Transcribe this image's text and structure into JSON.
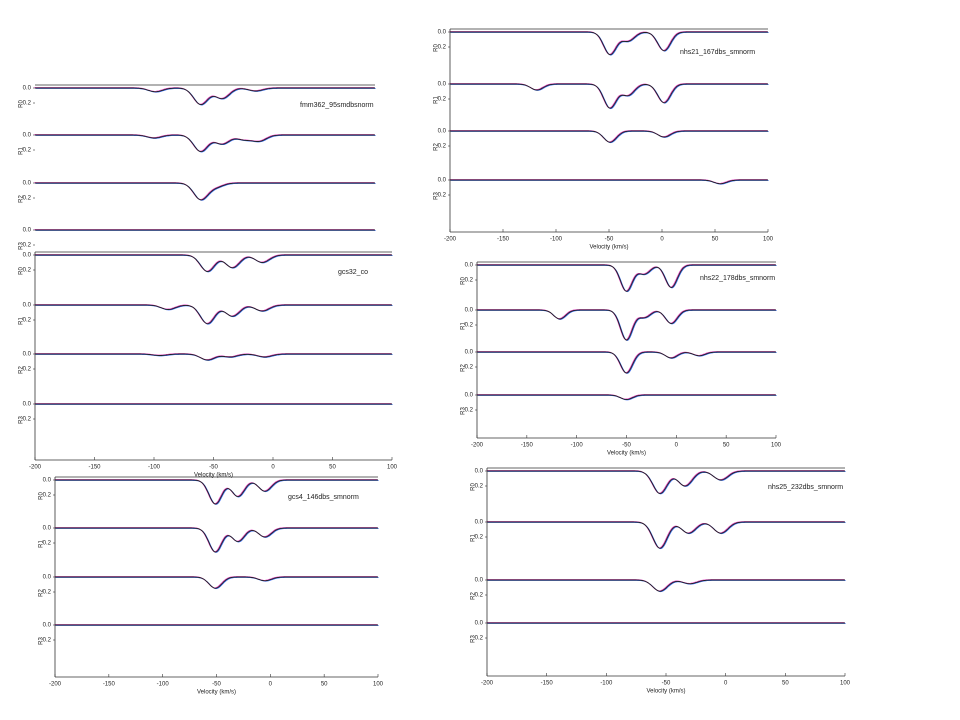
{
  "chart_data": [
    {
      "type": "line",
      "title": "fmm362_95smdbsnorm",
      "color": "#222",
      "xlim": [
        -200,
        85
      ],
      "yticks": [
        {
          "value": 0,
          "label": "0.0"
        },
        0.2
      ],
      "rows": [
        {
          "name": "R0",
          "components": {
            "x": [
              -99,
              -61,
              -43,
              -15
            ],
            "values": [
              0.05,
              0.22,
              0.14,
              0.04
            ]
          }
        },
        {
          "name": "R1",
          "components": {
            "x": [
              -100,
              -61,
              -43,
              -25,
              -12
            ],
            "values": [
              0.04,
              0.22,
              0.12,
              0.06,
              0.08
            ]
          }
        },
        {
          "name": "R2",
          "components": {
            "x": [
              -61,
              -48
            ],
            "values": [
              0.22,
              0.05
            ]
          }
        },
        {
          "name": "R3",
          "components": {
            "x": [],
            "values": []
          }
        }
      ]
    },
    {
      "type": "line",
      "title": "gcs32_co",
      "color": "#222",
      "xlim": [
        -200,
        100
      ],
      "xticks": [
        -200,
        -150,
        -100,
        -50,
        0,
        50,
        100
      ],
      "xlabel": "Velocity (km/s)",
      "yticks": [
        {
          "value": 0,
          "label": "0.0"
        },
        0.2
      ],
      "rows": [
        {
          "name": "R0",
          "components": {
            "x": [
              -55,
              -34,
              -9
            ],
            "values": [
              0.22,
              0.17,
              0.1
            ]
          }
        },
        {
          "name": "R1",
          "components": {
            "x": [
              -88,
              -55,
              -34,
              -9
            ],
            "values": [
              0.06,
              0.25,
              0.15,
              0.08
            ]
          }
        },
        {
          "name": "R2",
          "components": {
            "x": [
              -95,
              -55,
              -36,
              -7
            ],
            "values": [
              0.02,
              0.08,
              0.04,
              0.04
            ]
          }
        },
        {
          "name": "R3",
          "components": {
            "x": [],
            "values": []
          }
        }
      ]
    },
    {
      "type": "line",
      "title": "nhs21_167dbs_smnorm",
      "color": "#222",
      "xlim": [
        -200,
        100
      ],
      "xticks": [
        -200,
        -150,
        -100,
        -50,
        0,
        50,
        100
      ],
      "xlabel": "Velocity (km/s)",
      "yticks": [
        {
          "value": 0,
          "label": "0.0"
        },
        0.2
      ],
      "rows": [
        {
          "name": "R0",
          "components": {
            "x": [
              -49,
              -32,
              2
            ],
            "values": [
              0.3,
              0.12,
              0.25
            ]
          }
        },
        {
          "name": "R1",
          "components": {
            "x": [
              -118,
              -49,
              -32,
              2
            ],
            "values": [
              0.08,
              0.32,
              0.15,
              0.25
            ]
          }
        },
        {
          "name": "R2",
          "components": {
            "x": [
              -49,
              2
            ],
            "values": [
              0.15,
              0.08
            ]
          }
        },
        {
          "name": "R3",
          "components": {
            "x": [
              55
            ],
            "values": [
              0.05
            ]
          }
        }
      ]
    },
    {
      "type": "line",
      "title": "nhs22_178dbs_smnorm",
      "color": "#222",
      "xlim": [
        -200,
        100
      ],
      "xticks": [
        -200,
        -150,
        -100,
        -50,
        0,
        50,
        100
      ],
      "xlabel": "Velocity (km/s)",
      "yticks": [
        {
          "value": 0,
          "label": "0.0"
        },
        0.2
      ],
      "rows": [
        {
          "name": "R0",
          "components": {
            "x": [
              -50,
              -32,
              -5
            ],
            "values": [
              0.35,
              0.12,
              0.3
            ]
          }
        },
        {
          "name": "R1",
          "components": {
            "x": [
              -117,
              -50,
              -32,
              -5
            ],
            "values": [
              0.12,
              0.4,
              0.1,
              0.18
            ]
          }
        },
        {
          "name": "R2",
          "components": {
            "x": [
              -50,
              -5,
              23
            ],
            "values": [
              0.28,
              0.08,
              0.05
            ]
          }
        },
        {
          "name": "R3",
          "components": {
            "x": [
              -50
            ],
            "values": [
              0.06
            ]
          }
        }
      ]
    },
    {
      "type": "line",
      "title": "gcs4_146dbs_smnorm",
      "color": "#222",
      "xlim": [
        -200,
        100
      ],
      "xticks": [
        -200,
        -150,
        -100,
        -50,
        0,
        50,
        100
      ],
      "xlabel": "Velocity (km/s)",
      "yticks": [
        {
          "value": 0,
          "label": "0.0"
        },
        0.2
      ],
      "rows": [
        {
          "name": "R0",
          "components": {
            "x": [
              -51,
              -30,
              -5
            ],
            "values": [
              0.32,
              0.22,
              0.15
            ]
          }
        },
        {
          "name": "R1",
          "components": {
            "x": [
              -51,
              -30,
              -5
            ],
            "values": [
              0.32,
              0.18,
              0.12
            ]
          }
        },
        {
          "name": "R2",
          "components": {
            "x": [
              -51,
              -5
            ],
            "values": [
              0.15,
              0.05
            ]
          }
        },
        {
          "name": "R3",
          "components": {
            "x": [],
            "values": []
          }
        }
      ]
    },
    {
      "type": "line",
      "title": "nhs25_232dbs_smnorm",
      "color": "#222",
      "xlim": [
        -200,
        100
      ],
      "xticks": [
        -200,
        -150,
        -100,
        -50,
        0,
        50,
        100
      ],
      "xlabel": "Velocity (km/s)",
      "yticks": [
        {
          "value": 0,
          "label": "0.0"
        },
        0.2
      ],
      "rows": [
        {
          "name": "R0",
          "components": {
            "x": [
              -55,
              -34,
              -4
            ],
            "values": [
              0.3,
              0.2,
              0.12
            ]
          }
        },
        {
          "name": "R1",
          "components": {
            "x": [
              -55,
              -31,
              -4
            ],
            "values": [
              0.35,
              0.15,
              0.15
            ]
          }
        },
        {
          "name": "R2",
          "components": {
            "x": [
              -55,
              -30
            ],
            "values": [
              0.15,
              0.05
            ]
          }
        },
        {
          "name": "R3",
          "components": {
            "x": [],
            "values": []
          }
        }
      ]
    }
  ]
}
